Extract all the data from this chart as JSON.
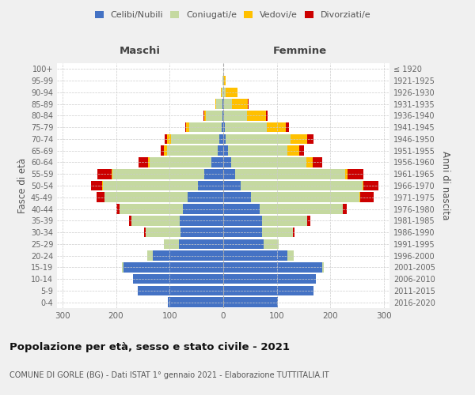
{
  "age_groups": [
    "0-4",
    "5-9",
    "10-14",
    "15-19",
    "20-24",
    "25-29",
    "30-34",
    "35-39",
    "40-44",
    "45-49",
    "50-54",
    "55-59",
    "60-64",
    "65-69",
    "70-74",
    "75-79",
    "80-84",
    "85-89",
    "90-94",
    "95-99",
    "100+"
  ],
  "birth_years": [
    "2016-2020",
    "2011-2015",
    "2006-2010",
    "2001-2005",
    "1996-2000",
    "1991-1995",
    "1986-1990",
    "1981-1985",
    "1976-1980",
    "1971-1975",
    "1966-1970",
    "1961-1965",
    "1956-1960",
    "1951-1955",
    "1946-1950",
    "1941-1945",
    "1936-1940",
    "1931-1935",
    "1926-1930",
    "1921-1925",
    "≤ 1920"
  ],
  "male": {
    "celibi": [
      104,
      160,
      168,
      186,
      131,
      82,
      80,
      81,
      76,
      67,
      47,
      36,
      22,
      10,
      7,
      3,
      2,
      1,
      0,
      0,
      0
    ],
    "coniugati": [
      0,
      0,
      0,
      3,
      10,
      28,
      65,
      90,
      118,
      155,
      178,
      170,
      115,
      95,
      90,
      60,
      30,
      12,
      3,
      1,
      0
    ],
    "vedovi": [
      0,
      0,
      0,
      0,
      0,
      0,
      0,
      0,
      0,
      0,
      1,
      2,
      3,
      5,
      8,
      6,
      4,
      2,
      1,
      0,
      0
    ],
    "divorziati": [
      0,
      0,
      0,
      0,
      0,
      1,
      3,
      5,
      6,
      14,
      20,
      27,
      18,
      6,
      4,
      2,
      1,
      0,
      0,
      0,
      0
    ]
  },
  "female": {
    "nubili": [
      102,
      168,
      172,
      185,
      120,
      75,
      72,
      72,
      68,
      52,
      32,
      22,
      15,
      9,
      5,
      3,
      2,
      1,
      0,
      0,
      0
    ],
    "coniugate": [
      0,
      0,
      1,
      3,
      12,
      28,
      58,
      85,
      155,
      202,
      228,
      205,
      140,
      110,
      120,
      78,
      42,
      15,
      4,
      0,
      0
    ],
    "vedove": [
      0,
      0,
      0,
      0,
      0,
      0,
      0,
      0,
      0,
      1,
      2,
      5,
      12,
      22,
      32,
      35,
      35,
      30,
      22,
      5,
      0
    ],
    "divorziate": [
      0,
      0,
      0,
      0,
      0,
      1,
      3,
      6,
      8,
      25,
      28,
      30,
      18,
      9,
      12,
      7,
      4,
      1,
      0,
      0,
      0
    ]
  },
  "colors": {
    "celibi": "#4472c4",
    "coniugati": "#c5d9a0",
    "vedovi": "#ffc000",
    "divorziati": "#cc0000"
  },
  "xlim": 310,
  "title": "Popolazione per età, sesso e stato civile - 2021",
  "subtitle": "COMUNE DI GORLE (BG) - Dati ISTAT 1° gennaio 2021 - Elaborazione TUTTITALIA.IT",
  "xlabel_left": "Maschi",
  "xlabel_right": "Femmine",
  "ylabel_left": "Fasce di età",
  "ylabel_right": "Anni di nascita",
  "bg_color": "#f0f0f0",
  "plot_bg_color": "#ffffff"
}
